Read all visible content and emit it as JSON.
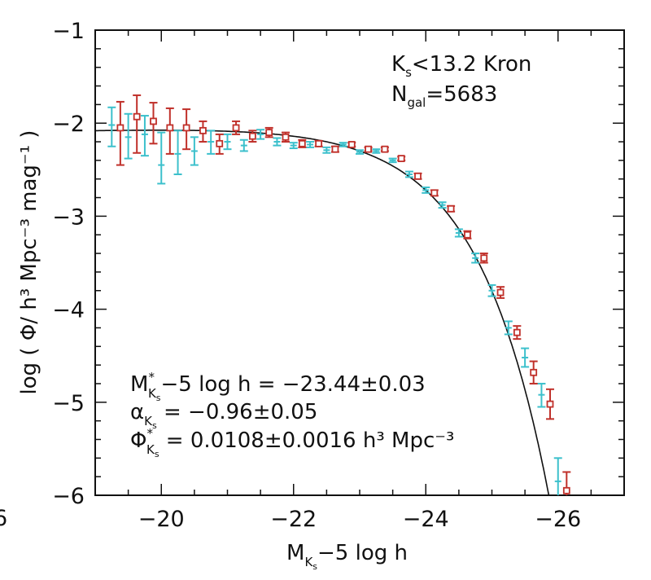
{
  "chart_data": {
    "type": "scatter",
    "xlabel": "M",
    "xlabel_sub": "K",
    "xlabel_subsub": "s",
    "xlabel_rest": "−5 log h",
    "ylabel": "log ( Φ/ h³ Mpc⁻³ mag⁻¹ )",
    "xlim": [
      -19,
      -27
    ],
    "ylim": [
      -6,
      -1
    ],
    "x_tick_values": [
      -20,
      -22,
      -24,
      -26
    ],
    "x_tick_labels": [
      "−20",
      "−22",
      "−24",
      "−26"
    ],
    "y_tick_values": [
      -1,
      -2,
      -3,
      -4,
      -5,
      -6
    ],
    "y_tick_labels": [
      "−1",
      "−2",
      "−3",
      "−4",
      "−5",
      "−6"
    ],
    "edge_fragment": "6",
    "grid": false,
    "annotations": {
      "sample_cut": "K",
      "sample_cut_sub": "s",
      "sample_cut_rest": "<13.2 Kron",
      "ngal": "N",
      "ngal_sub": "gal",
      "ngal_rest": "=5683",
      "mstar_M": "M",
      "mstar_sup": "*",
      "mstar_sub": "K",
      "mstar_subsub": "s",
      "mstar_rest": "−5 log h  =  −23.44±0.03",
      "alpha_sym": "α",
      "alpha_sub": "K",
      "alpha_subsub": "s",
      "alpha_rest": "  =  −0.96±0.05",
      "phi_sym": "Φ",
      "phi_sup": "*",
      "phi_sub": "K",
      "phi_subsub": "s",
      "phi_rest": "  =  0.0108±0.0016 h³ Mpc⁻³"
    },
    "fit": {
      "M_star": -23.44,
      "alpha": -0.96,
      "phi_star": 0.0108
    },
    "series": [
      {
        "marker": "open-square",
        "color": "#c0302a",
        "points": [
          {
            "x": -19.38,
            "y": -2.05,
            "lo": -2.45,
            "hi": -1.77
          },
          {
            "x": -19.63,
            "y": -1.93,
            "lo": -2.32,
            "hi": -1.7
          },
          {
            "x": -19.88,
            "y": -1.98,
            "lo": -2.22,
            "hi": -1.78
          },
          {
            "x": -20.13,
            "y": -2.05,
            "lo": -2.33,
            "hi": -1.84
          },
          {
            "x": -20.38,
            "y": -2.05,
            "lo": -2.28,
            "hi": -1.85
          },
          {
            "x": -20.63,
            "y": -2.08,
            "lo": -2.2,
            "hi": -1.98
          },
          {
            "x": -20.88,
            "y": -2.22,
            "lo": -2.33,
            "hi": -2.12
          },
          {
            "x": -21.13,
            "y": -2.05,
            "lo": -2.12,
            "hi": -1.98
          },
          {
            "x": -21.38,
            "y": -2.14,
            "lo": -2.2,
            "hi": -2.08
          },
          {
            "x": -21.63,
            "y": -2.1,
            "lo": -2.15,
            "hi": -2.05
          },
          {
            "x": -21.88,
            "y": -2.15,
            "lo": -2.2,
            "hi": -2.1
          },
          {
            "x": -22.13,
            "y": -2.22,
            "lo": -2.26,
            "hi": -2.18
          },
          {
            "x": -22.38,
            "y": -2.22,
            "lo": -2.25,
            "hi": -2.19
          },
          {
            "x": -22.63,
            "y": -2.28,
            "lo": -2.31,
            "hi": -2.25
          },
          {
            "x": -22.88,
            "y": -2.23,
            "lo": -2.25,
            "hi": -2.21
          },
          {
            "x": -23.13,
            "y": -2.28,
            "lo": -2.3,
            "hi": -2.26
          },
          {
            "x": -23.38,
            "y": -2.28,
            "lo": -2.3,
            "hi": -2.26
          },
          {
            "x": -23.63,
            "y": -2.38,
            "lo": -2.4,
            "hi": -2.36
          },
          {
            "x": -23.88,
            "y": -2.57,
            "lo": -2.6,
            "hi": -2.54
          },
          {
            "x": -24.13,
            "y": -2.75,
            "lo": -2.78,
            "hi": -2.72
          },
          {
            "x": -24.38,
            "y": -2.92,
            "lo": -2.95,
            "hi": -2.89
          },
          {
            "x": -24.63,
            "y": -3.2,
            "lo": -3.24,
            "hi": -3.16
          },
          {
            "x": -24.88,
            "y": -3.45,
            "lo": -3.5,
            "hi": -3.4
          },
          {
            "x": -25.13,
            "y": -3.82,
            "lo": -3.88,
            "hi": -3.76
          },
          {
            "x": -25.38,
            "y": -4.25,
            "lo": -4.32,
            "hi": -4.18
          },
          {
            "x": -25.63,
            "y": -4.68,
            "lo": -4.8,
            "hi": -4.56
          },
          {
            "x": -25.88,
            "y": -5.02,
            "lo": -5.18,
            "hi": -4.86
          },
          {
            "x": -26.13,
            "y": -5.95,
            "lo": -6.0,
            "hi": -5.75
          }
        ]
      },
      {
        "marker": "cross",
        "color": "#3cc0cc",
        "points": [
          {
            "x": -19.25,
            "y": -2.02,
            "lo": -2.25,
            "hi": -1.83
          },
          {
            "x": -19.5,
            "y": -2.15,
            "lo": -2.38,
            "hi": -1.9
          },
          {
            "x": -19.75,
            "y": -2.12,
            "lo": -2.35,
            "hi": -1.92
          },
          {
            "x": -20.0,
            "y": -2.45,
            "lo": -2.65,
            "hi": -2.1
          },
          {
            "x": -20.25,
            "y": -2.33,
            "lo": -2.55,
            "hi": -2.08
          },
          {
            "x": -20.5,
            "y": -2.3,
            "lo": -2.45,
            "hi": -2.15
          },
          {
            "x": -20.75,
            "y": -2.2,
            "lo": -2.33,
            "hi": -2.08
          },
          {
            "x": -21.0,
            "y": -2.2,
            "lo": -2.28,
            "hi": -2.12
          },
          {
            "x": -21.25,
            "y": -2.24,
            "lo": -2.3,
            "hi": -2.18
          },
          {
            "x": -21.5,
            "y": -2.12,
            "lo": -2.17,
            "hi": -2.07
          },
          {
            "x": -21.75,
            "y": -2.2,
            "lo": -2.24,
            "hi": -2.16
          },
          {
            "x": -22.0,
            "y": -2.24,
            "lo": -2.27,
            "hi": -2.21
          },
          {
            "x": -22.25,
            "y": -2.23,
            "lo": -2.26,
            "hi": -2.2
          },
          {
            "x": -22.5,
            "y": -2.29,
            "lo": -2.32,
            "hi": -2.26
          },
          {
            "x": -22.75,
            "y": -2.23,
            "lo": -2.25,
            "hi": -2.21
          },
          {
            "x": -23.0,
            "y": -2.31,
            "lo": -2.33,
            "hi": -2.29
          },
          {
            "x": -23.25,
            "y": -2.3,
            "lo": -2.32,
            "hi": -2.28
          },
          {
            "x": -23.5,
            "y": -2.4,
            "lo": -2.42,
            "hi": -2.38
          },
          {
            "x": -23.75,
            "y": -2.55,
            "lo": -2.58,
            "hi": -2.52
          },
          {
            "x": -24.0,
            "y": -2.72,
            "lo": -2.75,
            "hi": -2.69
          },
          {
            "x": -24.25,
            "y": -2.88,
            "lo": -2.91,
            "hi": -2.85
          },
          {
            "x": -24.5,
            "y": -3.18,
            "lo": -3.22,
            "hi": -3.14
          },
          {
            "x": -24.75,
            "y": -3.45,
            "lo": -3.5,
            "hi": -3.4
          },
          {
            "x": -25.0,
            "y": -3.8,
            "lo": -3.86,
            "hi": -3.74
          },
          {
            "x": -25.25,
            "y": -4.2,
            "lo": -4.27,
            "hi": -4.13
          },
          {
            "x": -25.5,
            "y": -4.52,
            "lo": -4.62,
            "hi": -4.42
          },
          {
            "x": -25.75,
            "y": -4.92,
            "lo": -5.05,
            "hi": -4.8
          },
          {
            "x": -26.0,
            "y": -5.85,
            "lo": -6.0,
            "hi": -5.6
          }
        ]
      }
    ]
  }
}
